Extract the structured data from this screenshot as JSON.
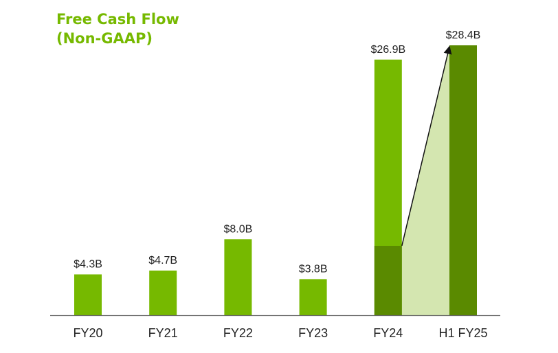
{
  "title": {
    "line1": "Free Cash Flow",
    "line2": "(Non-GAAP)"
  },
  "colors": {
    "title": "#76b900",
    "bar": "#76b900",
    "bar_dark": "#5a8a00",
    "highlight": "#d4e6b0",
    "axis": "#666666",
    "text": "#222222"
  },
  "chart_data": {
    "type": "bar",
    "categories": [
      "FY20",
      "FY21",
      "FY22",
      "FY23",
      "FY24",
      "H1 FY25"
    ],
    "values": [
      4.3,
      4.7,
      8.0,
      3.8,
      26.9,
      28.4
    ],
    "value_labels": [
      "$4.3B",
      "$4.7B",
      "$8.0B",
      "$3.8B",
      "$26.9B",
      "$28.4B"
    ],
    "highlight": {
      "from_category": "FY24",
      "to_category": "H1 FY25",
      "fy24_dark_portion": 7.3
    },
    "title": "Free Cash Flow (Non-GAAP)",
    "xlabel": "",
    "ylabel": "",
    "ylim": [
      0,
      28.4
    ],
    "grid": false,
    "legend": "none"
  }
}
